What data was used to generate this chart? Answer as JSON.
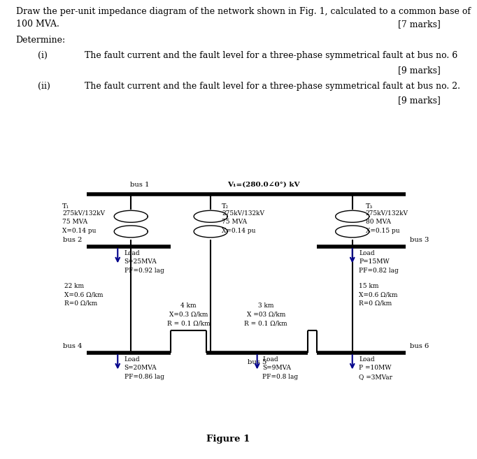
{
  "text_color": "#00008B",
  "background": "white",
  "title_line1": "Draw the per-unit impedance diagram of the network shown in Fig. 1, calculated to a common base of",
  "title_line2": "100 MVA.",
  "title_marks": "[7 marks]",
  "determine_text": "Determine:",
  "item_i_label": "(i)",
  "item_i_text": "The fault current and the fault level for a three-phase symmetrical fault at bus no. 6",
  "item_i_marks": "[9 marks]",
  "item_ii_label": "(ii)",
  "item_ii_text": "The fault current and the fault level for a three-phase symmetrical fault at bus no. 2.",
  "item_ii_marks": "[9 marks]",
  "fig_label": "Figure 1",
  "bus1_label": "bus 1",
  "bus2_label": "bus 2",
  "bus3_label": "bus 3",
  "bus4_label": "bus 4",
  "bus5_label": "bus 5",
  "bus6_label": "bus 6",
  "V1_label": "V₁=(280.0∠0°) kV",
  "T1_lines": [
    "T₁",
    "275kV/132kV",
    "75 MVA",
    "X=0.14 pu"
  ],
  "T2_lines": [
    "T₂",
    "275kV/132kV",
    "75 MVA",
    "X=0.14 pu"
  ],
  "T3_lines": [
    "T₃",
    "275kV/132kV",
    "80 MVA",
    "X=0.15 pu"
  ],
  "load2_lines": [
    "Load",
    "S=25MVA",
    "PF=0.92 lag"
  ],
  "load3_lines": [
    "Load",
    "P=15MW",
    "PF=0.82 lag"
  ],
  "load4_lines": [
    "Load",
    "S=20MVA",
    "PF=0.86 lag"
  ],
  "load5_lines": [
    "Load",
    "S=9MVA",
    "PF=0.8 lag"
  ],
  "load6_lines": [
    "Load",
    "P =10MW",
    "Q =3MVar"
  ],
  "line24_lines": [
    "22 km",
    "X=0.6 Ω/km",
    "R=0 Ω/km"
  ],
  "line45_lines": [
    "4 km",
    "X=0.3 Ω/km",
    "R = 0.1 Ω/km"
  ],
  "line56_lines": [
    "3 km",
    "X =03 Ω/km",
    "R = 0.1 Ω/km"
  ],
  "line36_lines": [
    "15 km",
    "X=0.6 Ω/km",
    "R=0 Ω/km"
  ]
}
